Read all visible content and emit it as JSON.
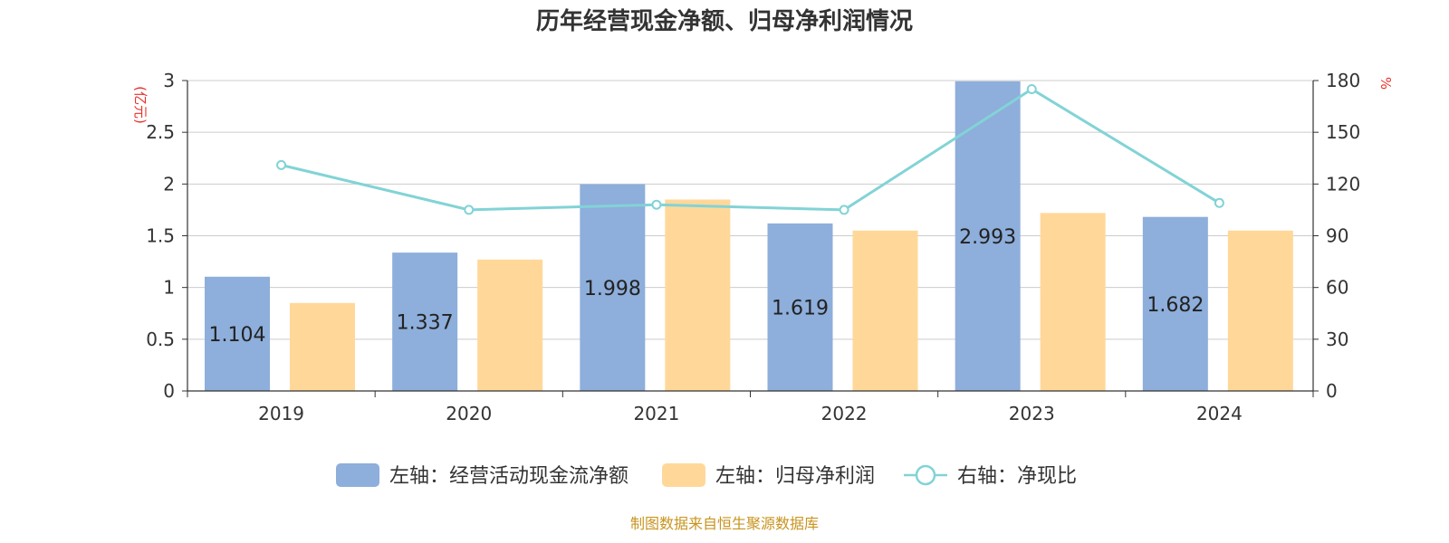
{
  "chart_data": {
    "type": "bar",
    "title": "历年经营现金净额、归母净利润情况",
    "categories": [
      "2019",
      "2020",
      "2021",
      "2022",
      "2023",
      "2024"
    ],
    "left_axis": {
      "label": "(亿元)",
      "range": [
        0,
        3
      ],
      "ticks": [
        "0",
        "0.5",
        "1",
        "1.5",
        "2",
        "2.5",
        "3"
      ],
      "tick_values": [
        0,
        0.5,
        1,
        1.5,
        2,
        2.5,
        3
      ]
    },
    "right_axis": {
      "label": "%",
      "range": [
        0,
        180
      ],
      "ticks": [
        "0",
        "30",
        "60",
        "90",
        "120",
        "150",
        "180"
      ],
      "tick_values": [
        0,
        30,
        60,
        90,
        120,
        150,
        180
      ]
    },
    "series": [
      {
        "name": "左轴：经营活动现金流净额",
        "type": "bar",
        "axis": "left",
        "color": "#8eaedb",
        "values": [
          1.104,
          1.337,
          1.998,
          1.619,
          2.993,
          1.682
        ],
        "labels": [
          "1.104",
          "1.337",
          "1.998",
          "1.619",
          "2.993",
          "1.682"
        ]
      },
      {
        "name": "左轴：归母净利润",
        "type": "bar",
        "axis": "left",
        "color": "#ffd899",
        "values": [
          0.85,
          1.27,
          1.85,
          1.55,
          1.72,
          1.55
        ]
      },
      {
        "name": "右轴：净现比",
        "type": "line",
        "axis": "right",
        "color": "#82d3d6",
        "values": [
          131,
          105,
          108,
          105,
          175,
          109
        ]
      }
    ],
    "grid": true,
    "legend_position": "bottom"
  },
  "footer": {
    "source": "制图数据来自恒生聚源数据库"
  },
  "colors": {
    "axis_label": "#e8312a",
    "footer": "#c8941f",
    "title": "#333333",
    "tick": "#333333",
    "grid": "#cccccc"
  }
}
